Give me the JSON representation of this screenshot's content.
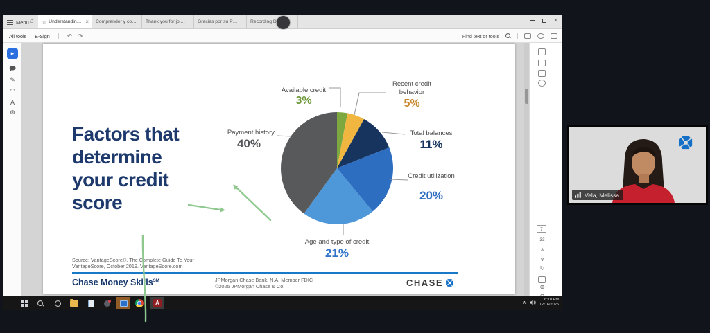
{
  "colors": {
    "annotation_green": "#8fc98f",
    "slide_accent_blue": "#1879c8",
    "title_navy": "#1e3a6d"
  },
  "app": {
    "menu_label": "Menu",
    "tabs": [
      {
        "label": "Understanding and Build...",
        "active": true
      },
      {
        "label": "Comprender y construir credito_...",
        "active": false
      },
      {
        "label": "Thank you for joining Us _ Final...",
        "active": false
      },
      {
        "label": "Gracias por su Participacion QR ...",
        "active": false
      },
      {
        "label": "Recording Disclosure EN...p...",
        "active": false
      }
    ],
    "toolbar": {
      "all_tools_label": "All tools",
      "esign_label": "E-Sign",
      "find_label": "Find text or tools"
    },
    "page_nav": {
      "current": "7",
      "total": "33"
    }
  },
  "chart_data": {
    "type": "pie",
    "title": "Factors that determine your credit score",
    "start_angle_deg": -90,
    "direction": "clockwise",
    "legend_position": "around",
    "segments": [
      {
        "label": "Available credit",
        "value": 3,
        "color": "#7da83f",
        "label_color": "#6f9a3c"
      },
      {
        "label": "Recent credit behavior",
        "value": 5,
        "color": "#f0b63f",
        "label_color": "#c8882e"
      },
      {
        "label": "Total balances",
        "value": 11,
        "color": "#17345f",
        "label_color": "#17345f"
      },
      {
        "label": "Credit utilization",
        "value": 20,
        "color": "#2e6ec0",
        "label_color": "#2e6ec0"
      },
      {
        "label": "Age and type of credit",
        "value": 21,
        "color": "#4e97d9",
        "label_color": "#2f74ca"
      },
      {
        "label": "Payment history",
        "value": 40,
        "color": "#58595b",
        "label_color": "#55565a"
      }
    ]
  },
  "slide": {
    "title_lines": "Factors that\ndetermine\nyour credit\nscore",
    "source_line1": "Source: VantageScore®. The Complete Guide To Your",
    "source_line2": "VantageScore, October 2019. VantageScore.com",
    "footer": {
      "brand": "Chase Money Skills",
      "brand_sup": "SM",
      "legal_line1": "JPMorgan Chase Bank, N.A. Member FDIC",
      "legal_line2": "©2025 JPMorgan Chase & Co.",
      "logo_text": "CHASE"
    }
  },
  "webcam": {
    "name_label": "Vela, Melissa"
  },
  "taskbar": {
    "time": "6:10 PM",
    "date": "12/16/2025"
  }
}
